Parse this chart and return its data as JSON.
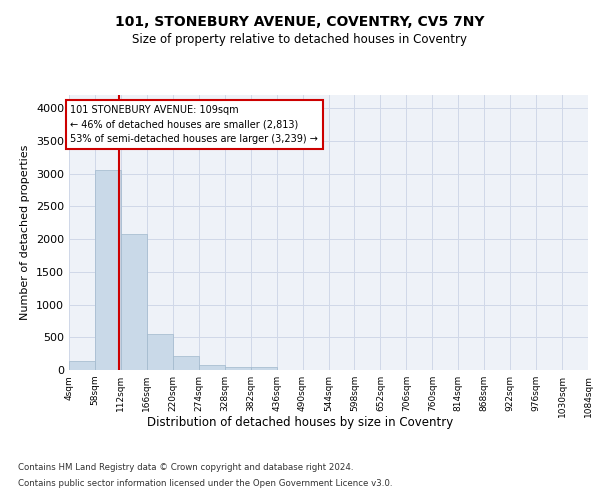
{
  "title_line1": "101, STONEBURY AVENUE, COVENTRY, CV5 7NY",
  "title_line2": "Size of property relative to detached houses in Coventry",
  "xlabel": "Distribution of detached houses by size in Coventry",
  "ylabel": "Number of detached properties",
  "footer_line1": "Contains HM Land Registry data © Crown copyright and database right 2024.",
  "footer_line2": "Contains public sector information licensed under the Open Government Licence v3.0.",
  "annotation_line1": "101 STONEBURY AVENUE: 109sqm",
  "annotation_line2": "← 46% of detached houses are smaller (2,813)",
  "annotation_line3": "53% of semi-detached houses are larger (3,239) →",
  "property_size": 109,
  "bar_color": "#c9d9e8",
  "bar_edge_color": "#a0b8cc",
  "grid_color": "#d0d8e8",
  "bg_color": "#eef2f8",
  "red_line_color": "#cc0000",
  "annotation_box_color": "#cc0000",
  "bins": [
    4,
    58,
    112,
    166,
    220,
    274,
    328,
    382,
    436,
    490,
    544,
    598,
    652,
    706,
    760,
    814,
    868,
    922,
    976,
    1030,
    1084
  ],
  "bin_labels": [
    "4sqm",
    "58sqm",
    "112sqm",
    "166sqm",
    "220sqm",
    "274sqm",
    "328sqm",
    "382sqm",
    "436sqm",
    "490sqm",
    "544sqm",
    "598sqm",
    "652sqm",
    "706sqm",
    "760sqm",
    "814sqm",
    "868sqm",
    "922sqm",
    "976sqm",
    "1030sqm",
    "1084sqm"
  ],
  "counts": [
    130,
    3060,
    2080,
    550,
    210,
    80,
    50,
    40,
    0,
    0,
    0,
    0,
    0,
    0,
    0,
    0,
    0,
    0,
    0,
    0
  ],
  "ylim": [
    0,
    4200
  ],
  "yticks": [
    0,
    500,
    1000,
    1500,
    2000,
    2500,
    3000,
    3500,
    4000
  ]
}
